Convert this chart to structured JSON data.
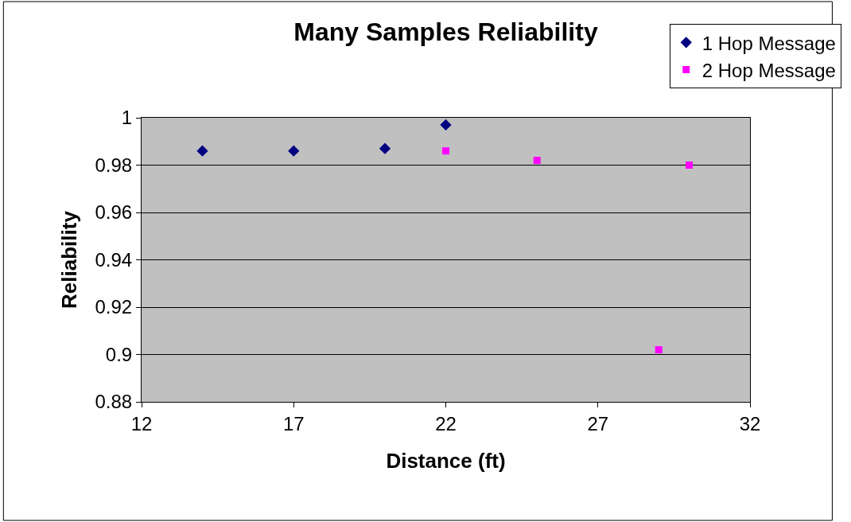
{
  "chart_data": {
    "type": "scatter",
    "title": "Many Samples Reliability",
    "xlabel": "Distance (ft)",
    "ylabel": "Reliability",
    "series": [
      {
        "name": "1 Hop Message",
        "color": "#000080",
        "marker": "diamond",
        "x": [
          14,
          17,
          20,
          22
        ],
        "values": [
          0.986,
          0.986,
          0.987,
          0.997
        ]
      },
      {
        "name": "2 Hop Message",
        "color": "#ff00ff",
        "marker": "square",
        "x": [
          22,
          25,
          29,
          30
        ],
        "values": [
          0.986,
          0.982,
          0.902,
          0.98
        ]
      }
    ],
    "xlim": [
      12,
      32
    ],
    "xticks": [
      12,
      17,
      22,
      27,
      32
    ],
    "ylim": [
      0.88,
      1
    ],
    "yticks": [
      0.88,
      0.9,
      0.92,
      0.94,
      0.96,
      0.98,
      1
    ],
    "grid": "y",
    "legend": "top right"
  }
}
